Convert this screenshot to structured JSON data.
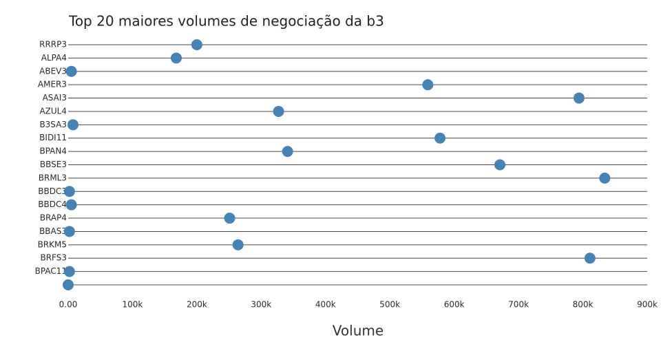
{
  "chart_data": {
    "type": "dot",
    "title": "Top 20 maiores volumes de negociação da b3",
    "x_label": "Volume",
    "categories": [
      "RRRP3",
      "ALPA4",
      "ABEV3",
      "AMER3",
      "ASAI3",
      "AZUL4",
      "B3SA3",
      "BIDI11",
      "BPAN4",
      "BBSE3",
      "BRML3",
      "BBDC3",
      "BBDC4",
      "BRAP4",
      "BBAS3",
      "BRKM5",
      "BRFS3",
      "BPAC11",
      null
    ],
    "values": [
      200000,
      168000,
      5000,
      559000,
      794000,
      327000,
      7500,
      578000,
      341000,
      671000,
      834000,
      2000,
      5000,
      251000,
      2000,
      264000,
      811000,
      2000,
      0
    ],
    "color": "#4682b4",
    "xlim": [
      0,
      900000
    ],
    "xticks": [
      {
        "value": 0,
        "label": "0.00"
      },
      {
        "value": 100000,
        "label": "100k"
      },
      {
        "value": 200000,
        "label": "200k"
      },
      {
        "value": 300000,
        "label": "300k"
      },
      {
        "value": 400000,
        "label": "400k"
      },
      {
        "value": 500000,
        "label": "500k"
      },
      {
        "value": 600000,
        "label": "600k"
      },
      {
        "value": 700000,
        "label": "700k"
      },
      {
        "value": 800000,
        "label": "800k"
      },
      {
        "value": 900000,
        "label": "900k"
      }
    ]
  }
}
